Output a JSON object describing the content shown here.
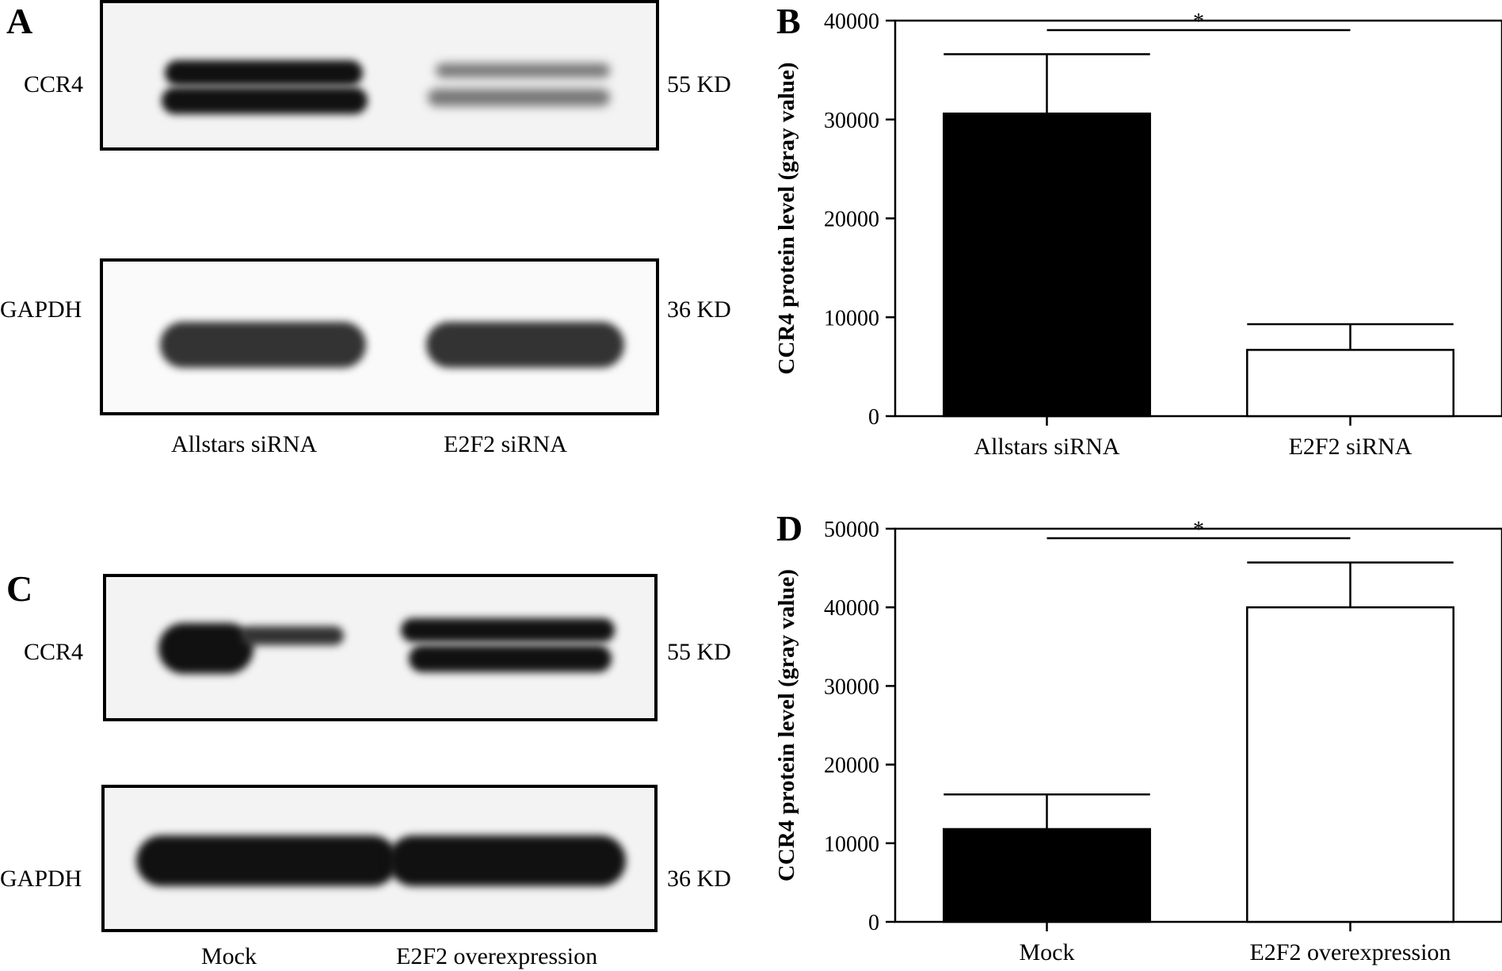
{
  "panels": {
    "A": {
      "letter": "A",
      "blot_top_label": "CCR4",
      "blot_top_size": "55 KD",
      "blot_bottom_label": "GAPDH",
      "blot_bottom_size": "36 KD",
      "lanes": [
        "Allstars siRNA",
        "E2F2 siRNA"
      ]
    },
    "B": {
      "letter": "B"
    },
    "C": {
      "letter": "C",
      "blot_top_label": "CCR4",
      "blot_top_size": "55 KD",
      "blot_bottom_label": "GAPDH",
      "blot_bottom_size": "36 KD",
      "lanes": [
        "Mock",
        "E2F2 overexpression"
      ]
    },
    "D": {
      "letter": "D"
    }
  },
  "chart_data": [
    {
      "panel": "B",
      "type": "bar",
      "categories": [
        "Allstars siRNA",
        "E2F2 siRNA"
      ],
      "values": [
        30600,
        6700
      ],
      "errors": [
        6000,
        2600
      ],
      "bar_colors": [
        "#000000",
        "#ffffff"
      ],
      "ylabel": "CCR4 protein level (gray value)",
      "ylim": [
        0,
        40000
      ],
      "yticks": [
        0,
        10000,
        20000,
        30000,
        40000
      ],
      "significance": "*"
    },
    {
      "panel": "D",
      "type": "bar",
      "categories": [
        "Mock",
        "E2F2 overexpression"
      ],
      "values": [
        11800,
        40000
      ],
      "errors": [
        4400,
        5700
      ],
      "bar_colors": [
        "#000000",
        "#ffffff"
      ],
      "ylabel": "CCR4 protein level (gray value)",
      "ylim": [
        0,
        50000
      ],
      "yticks": [
        0,
        10000,
        20000,
        30000,
        40000,
        50000
      ],
      "significance": "*"
    }
  ]
}
